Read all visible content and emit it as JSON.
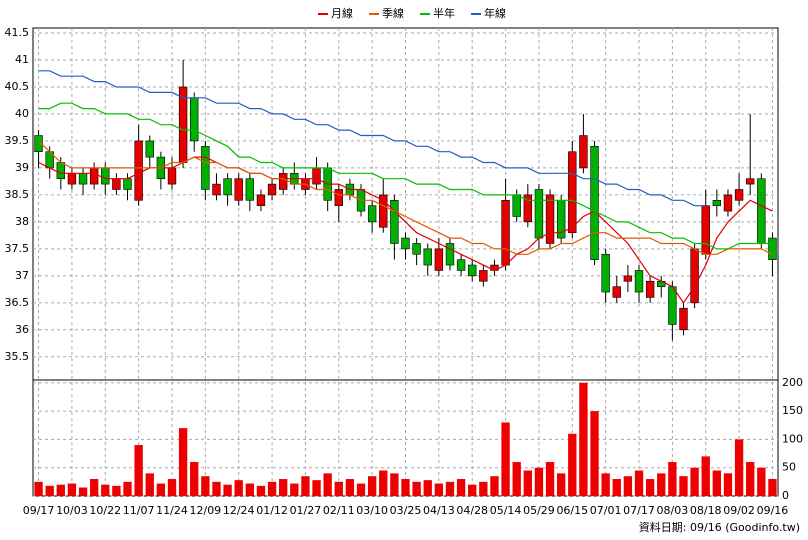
{
  "footer": "資料日期: 09/16 (Goodinfo.tw)",
  "chart_data": [
    {
      "type": "candlestick",
      "categories": [
        "09/17",
        null,
        null,
        "10/03",
        null,
        null,
        "10/22",
        null,
        null,
        "11/07",
        null,
        null,
        "11/24",
        null,
        null,
        "12/09",
        null,
        null,
        "12/24",
        null,
        null,
        "01/12",
        null,
        null,
        "01/27",
        null,
        null,
        "02/11",
        null,
        null,
        "03/10",
        null,
        null,
        "03/25",
        null,
        null,
        "04/13",
        null,
        null,
        "04/28",
        null,
        null,
        "05/14",
        null,
        null,
        "05/29",
        null,
        null,
        "06/15",
        null,
        null,
        "07/01",
        null,
        null,
        "07/17",
        null,
        null,
        "08/03",
        null,
        null,
        "08/18",
        null,
        null,
        "09/02",
        null,
        null,
        "09/16"
      ],
      "open": [
        39.6,
        39.3,
        39.1,
        38.7,
        38.9,
        38.7,
        39.0,
        38.6,
        38.8,
        38.4,
        39.5,
        39.2,
        38.7,
        39.1,
        40.3,
        39.4,
        38.5,
        38.8,
        38.4,
        38.8,
        38.3,
        38.5,
        38.6,
        38.9,
        38.6,
        38.7,
        39.0,
        38.3,
        38.7,
        38.6,
        38.3,
        37.9,
        38.4,
        37.7,
        37.6,
        37.5,
        37.1,
        37.6,
        37.3,
        37.2,
        36.9,
        37.1,
        37.2,
        38.5,
        38.0,
        38.6,
        37.6,
        38.4,
        37.8,
        39.0,
        39.4,
        37.4,
        36.6,
        36.9,
        37.1,
        36.6,
        36.9,
        36.8,
        36.0,
        36.5,
        37.4,
        38.4,
        38.2,
        38.4,
        38.7,
        38.8,
        37.7
      ],
      "high": [
        39.7,
        39.4,
        39.2,
        39.0,
        39.0,
        39.1,
        39.1,
        38.9,
        38.9,
        39.8,
        39.6,
        39.3,
        39.2,
        41.0,
        40.4,
        39.5,
        38.9,
        38.9,
        38.9,
        38.9,
        38.6,
        38.8,
        39.0,
        39.1,
        38.9,
        39.2,
        39.1,
        38.7,
        38.8,
        38.7,
        38.4,
        38.8,
        38.5,
        37.8,
        37.7,
        37.6,
        37.7,
        37.7,
        37.4,
        37.3,
        37.2,
        37.3,
        38.8,
        38.6,
        38.7,
        38.7,
        38.6,
        38.5,
        39.5,
        40.0,
        39.5,
        37.5,
        37.0,
        37.2,
        37.2,
        37.0,
        37.0,
        36.9,
        36.5,
        37.6,
        38.6,
        38.6,
        38.6,
        38.9,
        40.0,
        38.9,
        37.8
      ],
      "low": [
        39.0,
        38.8,
        38.6,
        38.6,
        38.5,
        38.6,
        38.5,
        38.5,
        38.4,
        38.3,
        39.0,
        38.6,
        38.6,
        39.0,
        39.3,
        38.4,
        38.4,
        38.3,
        38.3,
        38.2,
        38.2,
        38.4,
        38.5,
        38.6,
        38.5,
        38.6,
        38.2,
        38.0,
        38.4,
        38.1,
        37.8,
        37.8,
        37.3,
        37.3,
        37.2,
        37.0,
        37.0,
        37.1,
        37.0,
        36.9,
        36.8,
        37.0,
        37.1,
        38.0,
        37.9,
        37.5,
        37.5,
        37.6,
        37.7,
        38.9,
        37.2,
        36.5,
        36.5,
        36.7,
        36.5,
        36.5,
        36.6,
        35.8,
        35.9,
        36.4,
        37.3,
        38.1,
        38.1,
        38.3,
        38.5,
        37.5,
        37.0
      ],
      "close": [
        39.3,
        39.0,
        38.8,
        38.9,
        38.7,
        39.0,
        38.7,
        38.8,
        38.6,
        39.5,
        39.2,
        38.8,
        39.0,
        40.5,
        39.5,
        38.6,
        38.7,
        38.5,
        38.8,
        38.4,
        38.5,
        38.7,
        38.9,
        38.7,
        38.8,
        39.0,
        38.4,
        38.6,
        38.5,
        38.2,
        38.0,
        38.5,
        37.6,
        37.5,
        37.4,
        37.2,
        37.5,
        37.2,
        37.1,
        37.0,
        37.1,
        37.2,
        38.4,
        38.1,
        38.5,
        37.7,
        38.5,
        37.7,
        39.3,
        39.6,
        37.3,
        36.7,
        36.8,
        37.0,
        36.7,
        36.9,
        36.8,
        36.1,
        36.4,
        37.5,
        38.3,
        38.3,
        38.5,
        38.6,
        38.8,
        37.6,
        37.3
      ],
      "up_color": "#e60000",
      "down_color": "#00b000",
      "series": [
        {
          "name": "月線",
          "color": "#e00000",
          "values": [
            39.1,
            39.0,
            38.9,
            38.9,
            38.9,
            38.9,
            38.8,
            38.8,
            38.8,
            38.9,
            39.0,
            39.0,
            39.0,
            39.1,
            39.2,
            39.2,
            39.1,
            39.0,
            39.0,
            38.9,
            38.9,
            38.8,
            38.8,
            38.8,
            38.8,
            38.8,
            38.7,
            38.7,
            38.6,
            38.6,
            38.5,
            38.4,
            38.2,
            38.0,
            37.8,
            37.7,
            37.6,
            37.5,
            37.4,
            37.3,
            37.2,
            37.1,
            37.2,
            37.4,
            37.5,
            37.7,
            37.8,
            37.8,
            37.9,
            38.1,
            38.2,
            38.0,
            37.8,
            37.6,
            37.3,
            37.0,
            36.9,
            36.8,
            36.5,
            36.8,
            37.2,
            37.7,
            38.0,
            38.2,
            38.4,
            38.3,
            38.2
          ]
        },
        {
          "name": "季線",
          "color": "#e05a00",
          "values": [
            39.5,
            39.3,
            39.1,
            39.0,
            39.0,
            39.0,
            39.0,
            39.0,
            39.0,
            39.0,
            39.0,
            39.0,
            39.1,
            39.1,
            39.2,
            39.1,
            39.1,
            39.0,
            39.0,
            38.9,
            38.9,
            38.8,
            38.8,
            38.7,
            38.7,
            38.6,
            38.6,
            38.5,
            38.5,
            38.4,
            38.4,
            38.3,
            38.2,
            38.1,
            38.0,
            37.9,
            37.8,
            37.7,
            37.7,
            37.6,
            37.6,
            37.5,
            37.5,
            37.4,
            37.4,
            37.5,
            37.5,
            37.6,
            37.6,
            37.7,
            37.8,
            37.8,
            37.7,
            37.7,
            37.7,
            37.7,
            37.6,
            37.6,
            37.6,
            37.5,
            37.4,
            37.4,
            37.5,
            37.5,
            37.5,
            37.5,
            37.4
          ]
        },
        {
          "name": "半年",
          "color": "#00c000",
          "values": [
            40.1,
            40.1,
            40.2,
            40.2,
            40.1,
            40.1,
            40.0,
            40.0,
            40.0,
            39.9,
            39.9,
            39.8,
            39.8,
            39.7,
            39.7,
            39.6,
            39.5,
            39.4,
            39.2,
            39.2,
            39.1,
            39.1,
            39.0,
            39.0,
            39.0,
            39.0,
            39.0,
            38.9,
            38.9,
            38.9,
            38.9,
            38.8,
            38.8,
            38.8,
            38.7,
            38.7,
            38.7,
            38.6,
            38.6,
            38.6,
            38.5,
            38.5,
            38.5,
            38.5,
            38.4,
            38.4,
            38.4,
            38.4,
            38.4,
            38.3,
            38.2,
            38.1,
            38.0,
            38.0,
            37.9,
            37.8,
            37.8,
            37.7,
            37.7,
            37.6,
            37.6,
            37.5,
            37.5,
            37.6,
            37.6,
            37.6,
            37.6
          ]
        },
        {
          "name": "年線",
          "color": "#2060c0",
          "values": [
            40.8,
            40.8,
            40.7,
            40.7,
            40.7,
            40.6,
            40.6,
            40.5,
            40.5,
            40.5,
            40.4,
            40.4,
            40.4,
            40.3,
            40.3,
            40.3,
            40.2,
            40.2,
            40.2,
            40.1,
            40.1,
            40.0,
            40.0,
            39.9,
            39.9,
            39.8,
            39.8,
            39.7,
            39.7,
            39.6,
            39.6,
            39.6,
            39.5,
            39.5,
            39.4,
            39.4,
            39.3,
            39.3,
            39.2,
            39.2,
            39.1,
            39.1,
            39.0,
            39.0,
            39.0,
            38.9,
            38.9,
            38.9,
            38.9,
            38.8,
            38.8,
            38.7,
            38.7,
            38.6,
            38.6,
            38.5,
            38.5,
            38.4,
            38.4,
            38.3,
            38.3,
            null,
            null,
            null,
            null,
            null,
            null
          ]
        }
      ],
      "ylim": [
        35.07,
        41.5
      ],
      "yticks": [
        35.5,
        36,
        36.5,
        37,
        37.5,
        38,
        38.5,
        39,
        39.5,
        40,
        40.5,
        41,
        41.5
      ],
      "grid": true
    },
    {
      "type": "bar",
      "values": [
        25,
        18,
        20,
        22,
        15,
        30,
        20,
        18,
        25,
        90,
        40,
        22,
        30,
        120,
        60,
        35,
        25,
        20,
        28,
        22,
        18,
        25,
        30,
        22,
        35,
        28,
        40,
        25,
        30,
        22,
        35,
        45,
        40,
        30,
        25,
        28,
        22,
        25,
        30,
        20,
        25,
        35,
        130,
        60,
        45,
        50,
        60,
        40,
        110,
        200,
        150,
        40,
        30,
        35,
        45,
        30,
        40,
        60,
        35,
        50,
        70,
        45,
        40,
        100,
        60,
        50,
        30
      ],
      "color": "#ee0000",
      "ylim": [
        0,
        205
      ],
      "yticks": [
        0,
        50,
        100,
        150,
        200
      ],
      "grid": true
    }
  ]
}
